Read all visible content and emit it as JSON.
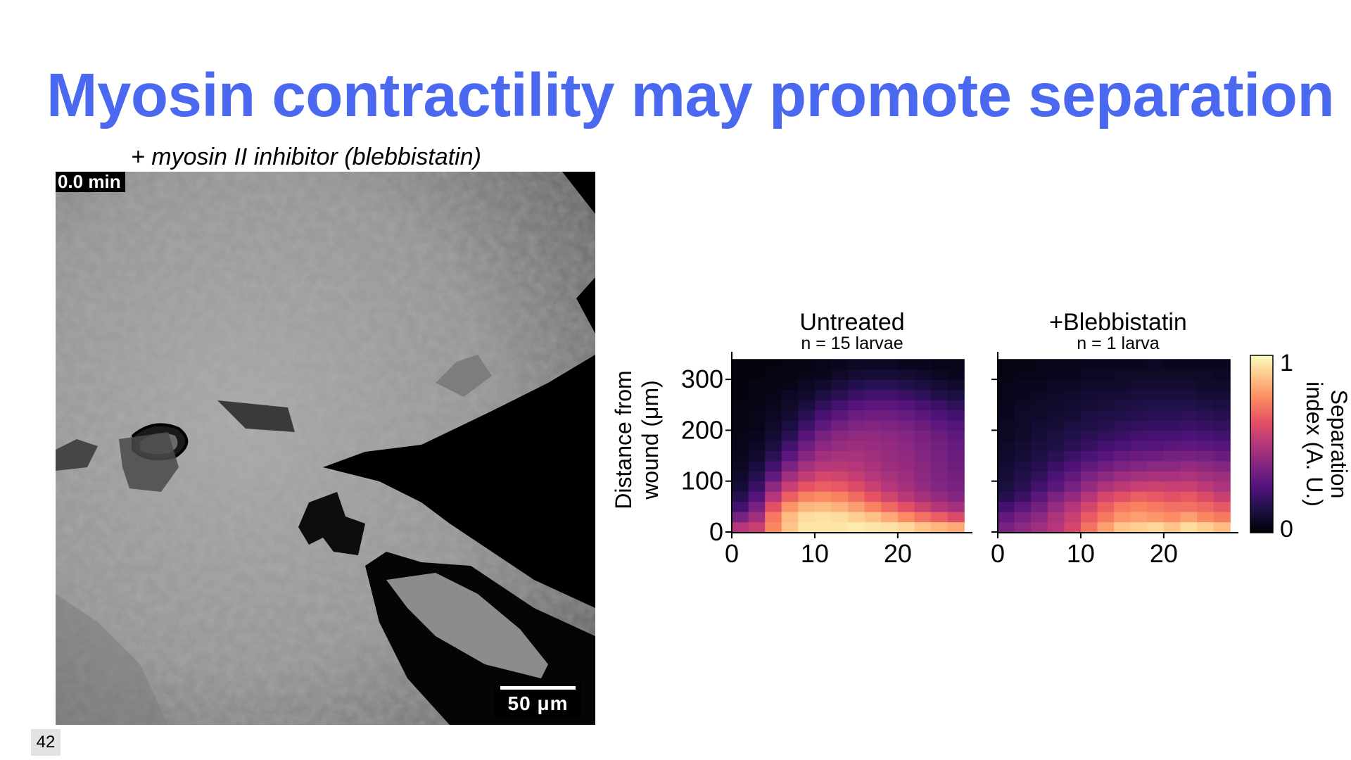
{
  "slide": {
    "title": "Myosin contractility may promote separation",
    "title_color": "#4a68f0",
    "caption": "+ myosin II inhibitor (blebbistatin)",
    "page_number": "42"
  },
  "micrograph": {
    "time_label": "0.0 min",
    "scale_bar_label": "50 μm",
    "description_icon": "grayscale-tissue-image"
  },
  "chart_data": [
    {
      "type": "heatmap",
      "title": "Untreated",
      "subtitle": "n = 15 larvae",
      "xlabel": "",
      "ylabel": "Distance from wound (μm)",
      "xlim": [
        0,
        29
      ],
      "ylim": [
        0,
        350
      ],
      "xticks": [
        0,
        10,
        20
      ],
      "yticks": [
        0,
        100,
        200,
        300
      ],
      "colormap": "magma",
      "x_bin_centers": [
        1,
        3,
        5,
        7,
        9,
        11,
        13,
        15,
        17,
        19,
        21,
        23,
        25,
        27
      ],
      "y_bin_centers": [
        10,
        30,
        50,
        70,
        90,
        110,
        130,
        150,
        170,
        190,
        210,
        230,
        250,
        270,
        290,
        310,
        330
      ],
      "values": [
        [
          0.5,
          0.55,
          0.75,
          0.88,
          0.95,
          0.95,
          0.95,
          0.96,
          0.95,
          0.94,
          0.92,
          0.88,
          0.85,
          0.82
        ],
        [
          0.35,
          0.45,
          0.72,
          0.86,
          0.93,
          0.94,
          0.93,
          0.9,
          0.87,
          0.82,
          0.76,
          0.7,
          0.66,
          0.6
        ],
        [
          0.22,
          0.35,
          0.62,
          0.78,
          0.85,
          0.86,
          0.84,
          0.8,
          0.74,
          0.68,
          0.62,
          0.56,
          0.5,
          0.46
        ],
        [
          0.15,
          0.27,
          0.5,
          0.66,
          0.74,
          0.76,
          0.74,
          0.69,
          0.63,
          0.57,
          0.51,
          0.46,
          0.42,
          0.38
        ],
        [
          0.1,
          0.2,
          0.4,
          0.55,
          0.63,
          0.66,
          0.64,
          0.6,
          0.55,
          0.5,
          0.46,
          0.42,
          0.38,
          0.35
        ],
        [
          0.08,
          0.15,
          0.3,
          0.45,
          0.53,
          0.58,
          0.57,
          0.54,
          0.5,
          0.47,
          0.44,
          0.4,
          0.37,
          0.34
        ],
        [
          0.06,
          0.11,
          0.22,
          0.36,
          0.46,
          0.5,
          0.51,
          0.5,
          0.47,
          0.44,
          0.42,
          0.39,
          0.36,
          0.33
        ],
        [
          0.05,
          0.08,
          0.16,
          0.28,
          0.39,
          0.45,
          0.47,
          0.47,
          0.45,
          0.43,
          0.41,
          0.38,
          0.35,
          0.32
        ],
        [
          0.04,
          0.06,
          0.12,
          0.22,
          0.33,
          0.4,
          0.43,
          0.44,
          0.43,
          0.42,
          0.4,
          0.37,
          0.34,
          0.31
        ],
        [
          0.04,
          0.05,
          0.09,
          0.16,
          0.27,
          0.35,
          0.39,
          0.41,
          0.41,
          0.4,
          0.38,
          0.35,
          0.32,
          0.29
        ],
        [
          0.03,
          0.04,
          0.07,
          0.12,
          0.21,
          0.29,
          0.34,
          0.37,
          0.38,
          0.37,
          0.35,
          0.32,
          0.29,
          0.26
        ],
        [
          0.03,
          0.04,
          0.06,
          0.09,
          0.16,
          0.23,
          0.28,
          0.32,
          0.33,
          0.33,
          0.31,
          0.28,
          0.25,
          0.22
        ],
        [
          0.03,
          0.03,
          0.05,
          0.07,
          0.12,
          0.17,
          0.22,
          0.26,
          0.28,
          0.28,
          0.26,
          0.23,
          0.2,
          0.17
        ],
        [
          0.02,
          0.03,
          0.04,
          0.06,
          0.08,
          0.12,
          0.16,
          0.2,
          0.22,
          0.22,
          0.2,
          0.17,
          0.14,
          0.12
        ],
        [
          0.02,
          0.03,
          0.03,
          0.04,
          0.06,
          0.08,
          0.11,
          0.14,
          0.16,
          0.16,
          0.14,
          0.12,
          0.1,
          0.08
        ],
        [
          0.02,
          0.02,
          0.03,
          0.03,
          0.04,
          0.05,
          0.07,
          0.09,
          0.1,
          0.1,
          0.09,
          0.08,
          0.06,
          0.05
        ],
        [
          0.02,
          0.02,
          0.02,
          0.03,
          0.03,
          0.04,
          0.05,
          0.06,
          0.06,
          0.06,
          0.05,
          0.05,
          0.04,
          0.04
        ]
      ]
    },
    {
      "type": "heatmap",
      "title": "+Blebbistatin",
      "subtitle": "n = 1 larva",
      "xlabel": "",
      "ylabel": "",
      "xlim": [
        0,
        29
      ],
      "ylim": [
        0,
        350
      ],
      "xticks": [
        0,
        10,
        20
      ],
      "yticks": [
        0,
        100,
        200,
        300
      ],
      "colormap": "magma",
      "x_bin_centers": [
        1,
        3,
        5,
        7,
        9,
        11,
        13,
        15,
        17,
        19,
        21,
        23,
        25,
        27
      ],
      "y_bin_centers": [
        10,
        30,
        50,
        70,
        90,
        110,
        130,
        150,
        170,
        190,
        210,
        230,
        250,
        270,
        290,
        310,
        330
      ],
      "values": [
        [
          0.35,
          0.4,
          0.45,
          0.5,
          0.58,
          0.7,
          0.8,
          0.88,
          0.9,
          0.92,
          0.88,
          0.93,
          0.9,
          0.86
        ],
        [
          0.3,
          0.35,
          0.4,
          0.48,
          0.55,
          0.65,
          0.72,
          0.78,
          0.8,
          0.78,
          0.76,
          0.8,
          0.75,
          0.72
        ],
        [
          0.22,
          0.28,
          0.34,
          0.42,
          0.5,
          0.58,
          0.66,
          0.72,
          0.74,
          0.72,
          0.7,
          0.7,
          0.68,
          0.64
        ],
        [
          0.15,
          0.2,
          0.28,
          0.36,
          0.42,
          0.5,
          0.58,
          0.62,
          0.66,
          0.64,
          0.62,
          0.64,
          0.6,
          0.55
        ],
        [
          0.12,
          0.16,
          0.22,
          0.28,
          0.35,
          0.42,
          0.48,
          0.52,
          0.55,
          0.56,
          0.55,
          0.55,
          0.52,
          0.48
        ],
        [
          0.1,
          0.14,
          0.18,
          0.24,
          0.3,
          0.36,
          0.4,
          0.44,
          0.46,
          0.47,
          0.47,
          0.48,
          0.46,
          0.44
        ],
        [
          0.09,
          0.12,
          0.15,
          0.2,
          0.25,
          0.3,
          0.33,
          0.36,
          0.38,
          0.4,
          0.4,
          0.42,
          0.4,
          0.38
        ],
        [
          0.08,
          0.1,
          0.13,
          0.16,
          0.2,
          0.24,
          0.27,
          0.3,
          0.32,
          0.33,
          0.34,
          0.35,
          0.34,
          0.32
        ],
        [
          0.07,
          0.09,
          0.11,
          0.13,
          0.16,
          0.19,
          0.22,
          0.24,
          0.26,
          0.27,
          0.28,
          0.29,
          0.28,
          0.27
        ],
        [
          0.06,
          0.08,
          0.1,
          0.12,
          0.14,
          0.16,
          0.18,
          0.2,
          0.22,
          0.23,
          0.23,
          0.24,
          0.23,
          0.22
        ],
        [
          0.06,
          0.07,
          0.09,
          0.1,
          0.12,
          0.13,
          0.15,
          0.17,
          0.18,
          0.19,
          0.19,
          0.2,
          0.19,
          0.18
        ],
        [
          0.05,
          0.07,
          0.08,
          0.09,
          0.1,
          0.12,
          0.13,
          0.14,
          0.15,
          0.16,
          0.16,
          0.17,
          0.16,
          0.15
        ],
        [
          0.05,
          0.06,
          0.07,
          0.08,
          0.09,
          0.1,
          0.11,
          0.12,
          0.13,
          0.14,
          0.14,
          0.14,
          0.13,
          0.12
        ],
        [
          0.04,
          0.05,
          0.06,
          0.07,
          0.08,
          0.09,
          0.1,
          0.1,
          0.11,
          0.11,
          0.11,
          0.11,
          0.1,
          0.1
        ],
        [
          0.04,
          0.05,
          0.05,
          0.06,
          0.06,
          0.07,
          0.08,
          0.08,
          0.09,
          0.09,
          0.09,
          0.09,
          0.08,
          0.08
        ],
        [
          0.03,
          0.04,
          0.04,
          0.05,
          0.05,
          0.06,
          0.06,
          0.07,
          0.07,
          0.07,
          0.07,
          0.07,
          0.07,
          0.06
        ],
        [
          0.03,
          0.03,
          0.04,
          0.04,
          0.04,
          0.05,
          0.05,
          0.05,
          0.05,
          0.06,
          0.05,
          0.05,
          0.05,
          0.05
        ]
      ]
    }
  ],
  "colorbar": {
    "label": "Separation index (A. U.)",
    "label_line1": "Separation",
    "label_line2": "index (A. U.)",
    "min_label": "0",
    "max_label": "1",
    "range": [
      0,
      1
    ],
    "colormap": "magma"
  }
}
